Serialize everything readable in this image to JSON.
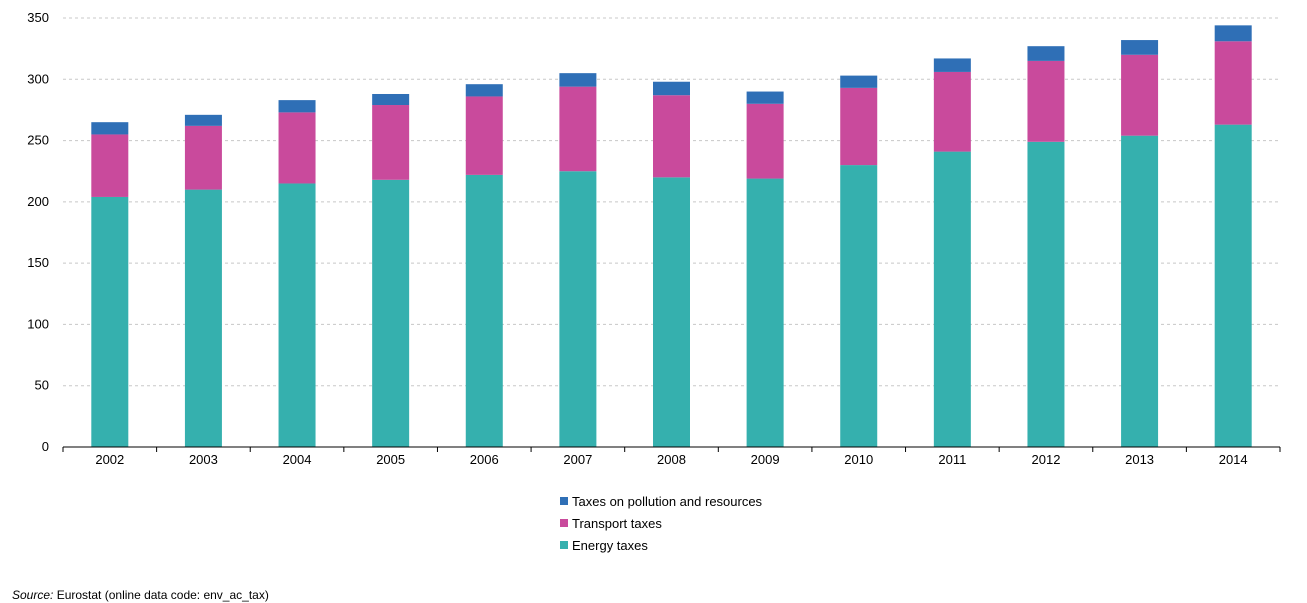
{
  "chart_data": {
    "type": "bar",
    "stacked": true,
    "categories": [
      "2002",
      "2003",
      "2004",
      "2005",
      "2006",
      "2007",
      "2008",
      "2009",
      "2010",
      "2011",
      "2012",
      "2013",
      "2014"
    ],
    "series": [
      {
        "name": "Energy taxes",
        "color": "#35b0ae",
        "values": [
          204,
          210,
          215,
          218,
          222,
          225,
          220,
          219,
          230,
          241,
          249,
          254,
          263
        ]
      },
      {
        "name": "Transport taxes",
        "color": "#c94a9c",
        "values": [
          51,
          52,
          58,
          61,
          64,
          69,
          67,
          61,
          63,
          65,
          66,
          66,
          68
        ]
      },
      {
        "name": "Taxes on pollution and resources",
        "color": "#2f6fb6",
        "values": [
          10,
          9,
          10,
          9,
          10,
          11,
          11,
          10,
          10,
          11,
          12,
          12,
          13
        ]
      }
    ],
    "legend_order": [
      2,
      1,
      0
    ],
    "yticks": [
      0,
      50,
      100,
      150,
      200,
      250,
      300,
      350
    ],
    "ylim": [
      0,
      350
    ],
    "grid": "horizontal dashed",
    "legend_position": "bottom-center",
    "title": "",
    "xlabel": "",
    "ylabel": ""
  },
  "source": {
    "label": "Source:",
    "text": "Eurostat (online data code: env_ac_tax)"
  }
}
